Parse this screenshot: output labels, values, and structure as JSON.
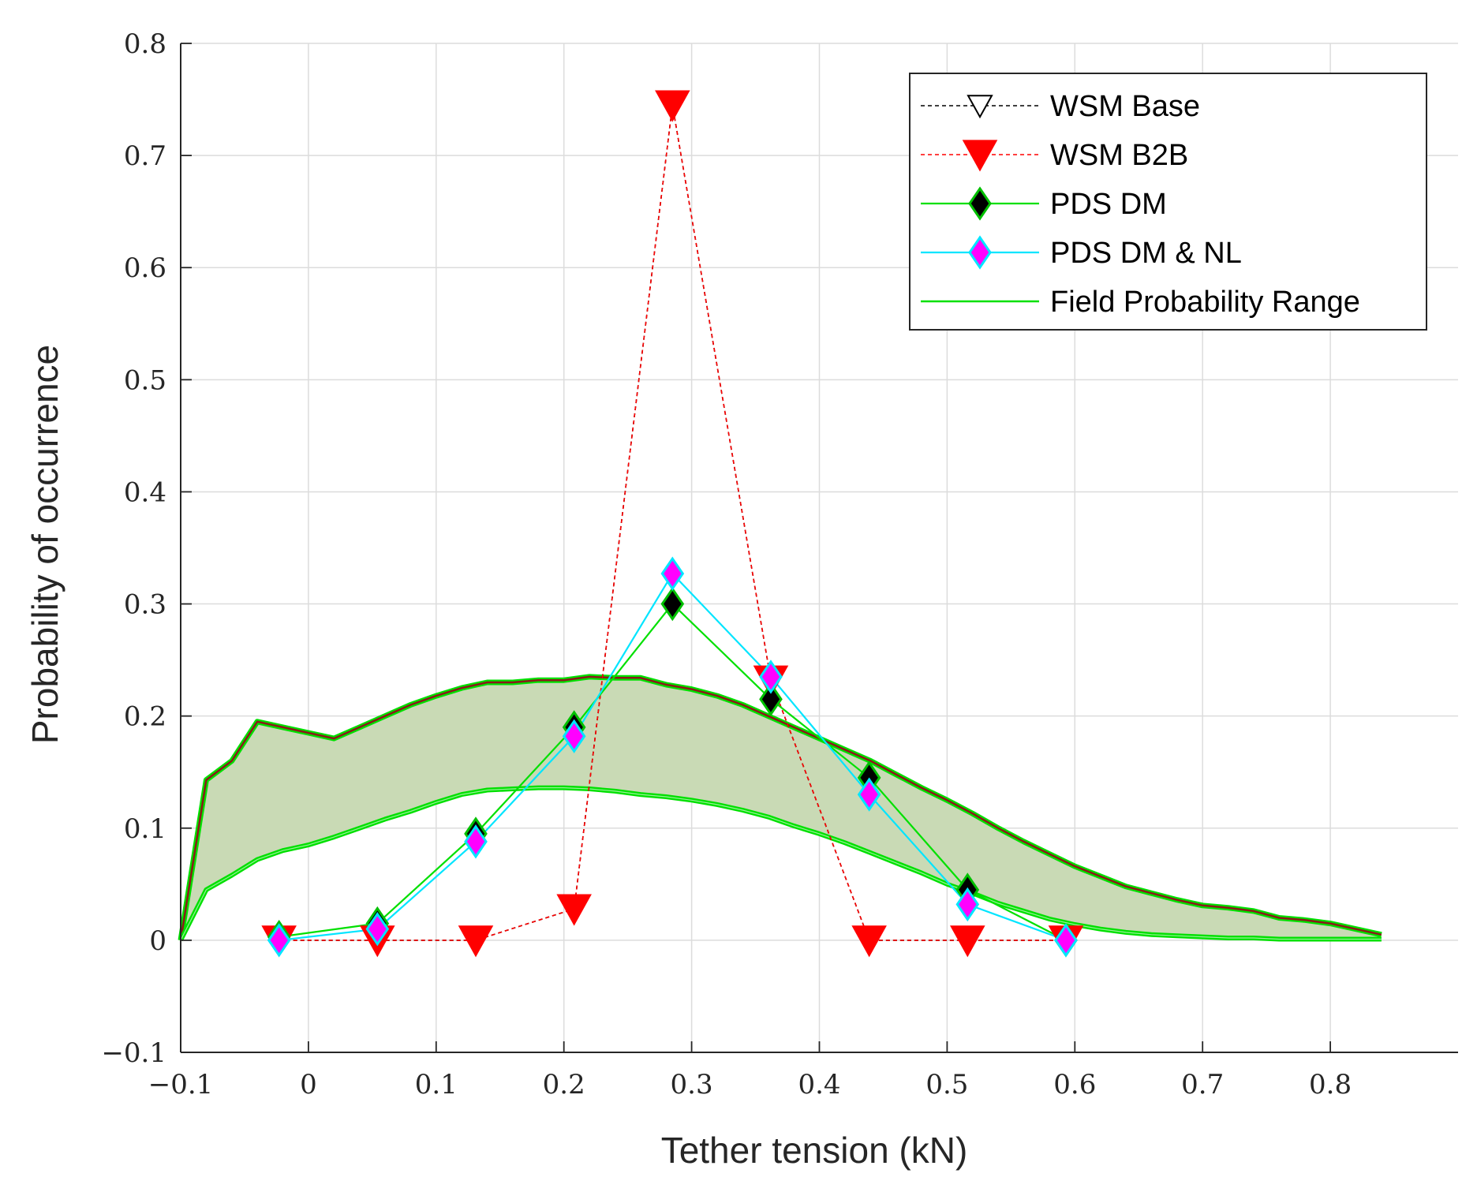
{
  "chart_data": {
    "type": "line",
    "title": "",
    "xlabel": "Tether tension (kN)",
    "ylabel": "Probability of occurrence",
    "xlim": [
      -0.1,
      0.9
    ],
    "ylim": [
      -0.1,
      0.8
    ],
    "xticks": [
      -0.1,
      0,
      0.1,
      0.2,
      0.3,
      0.4,
      0.5,
      0.6,
      0.7,
      0.8
    ],
    "xtick_labels": [
      "−0.1",
      "0",
      "0.1",
      "0.2",
      "0.3",
      "0.4",
      "0.5",
      "0.6",
      "0.7",
      "0.8"
    ],
    "yticks": [
      -0.1,
      0,
      0.1,
      0.2,
      0.3,
      0.4,
      0.5,
      0.6,
      0.7,
      0.8
    ],
    "ytick_labels": [
      "−0.1",
      "0",
      "0.1",
      "0.2",
      "0.3",
      "0.4",
      "0.5",
      "0.6",
      "0.7",
      "0.8"
    ],
    "grid": true,
    "legend_position": "top-right",
    "series": [
      {
        "name": "WSM Base",
        "line_color": "#000000",
        "line_style": "dashed",
        "marker": "triangle-down-open",
        "marker_fill": "#ffffff",
        "marker_edge": "#000000",
        "x": [
          -0.023,
          0.054,
          0.131,
          0.208,
          0.285,
          0.362,
          0.439,
          0.516,
          0.593
        ],
        "y": [
          0.0,
          0.0,
          0.0,
          0.028,
          0.745,
          0.232,
          0.0,
          0.0,
          0.0
        ]
      },
      {
        "name": "WSM B2B",
        "line_color": "#ff0000",
        "line_style": "dashed",
        "marker": "triangle-down-filled",
        "marker_fill": "#ff0000",
        "marker_edge": "#ff0000",
        "x": [
          -0.023,
          0.054,
          0.131,
          0.208,
          0.285,
          0.362,
          0.439,
          0.516,
          0.593
        ],
        "y": [
          0.0,
          0.0,
          0.0,
          0.028,
          0.745,
          0.232,
          0.0,
          0.0,
          0.0
        ]
      },
      {
        "name": "PDS DM",
        "line_color": "#00e000",
        "line_style": "solid",
        "marker": "diamond",
        "marker_fill": "#000000",
        "marker_edge": "#00c000",
        "x": [
          -0.023,
          0.054,
          0.131,
          0.208,
          0.285,
          0.362,
          0.439,
          0.516,
          0.593
        ],
        "y": [
          0.003,
          0.015,
          0.095,
          0.19,
          0.3,
          0.215,
          0.145,
          0.045,
          0.0
        ]
      },
      {
        "name": "PDS DM & NL",
        "line_color": "#00e5ff",
        "line_style": "solid",
        "marker": "diamond",
        "marker_fill": "#ff00ff",
        "marker_edge": "#00e5ff",
        "x": [
          -0.023,
          0.054,
          0.131,
          0.208,
          0.285,
          0.362,
          0.439,
          0.516,
          0.593
        ],
        "y": [
          0.0,
          0.01,
          0.088,
          0.182,
          0.327,
          0.235,
          0.13,
          0.032,
          0.0
        ]
      }
    ],
    "field_range": {
      "name": "Field Probability Range",
      "line_color": "#00e000",
      "upper_edge_color": "#8b1a1a",
      "fill_color": "#c9dab5",
      "x": [
        -0.1,
        -0.08,
        -0.06,
        -0.04,
        -0.02,
        0.0,
        0.02,
        0.04,
        0.06,
        0.08,
        0.1,
        0.12,
        0.14,
        0.16,
        0.18,
        0.2,
        0.22,
        0.24,
        0.26,
        0.28,
        0.3,
        0.32,
        0.34,
        0.36,
        0.38,
        0.4,
        0.42,
        0.44,
        0.46,
        0.48,
        0.5,
        0.52,
        0.54,
        0.56,
        0.58,
        0.6,
        0.62,
        0.64,
        0.66,
        0.68,
        0.7,
        0.72,
        0.74,
        0.76,
        0.78,
        0.8,
        0.82,
        0.84
      ],
      "upper": [
        0.0,
        0.143,
        0.16,
        0.195,
        0.19,
        0.185,
        0.18,
        0.19,
        0.2,
        0.21,
        0.218,
        0.225,
        0.23,
        0.23,
        0.232,
        0.232,
        0.235,
        0.234,
        0.234,
        0.228,
        0.224,
        0.218,
        0.21,
        0.2,
        0.19,
        0.18,
        0.17,
        0.16,
        0.148,
        0.136,
        0.125,
        0.113,
        0.1,
        0.088,
        0.077,
        0.066,
        0.057,
        0.048,
        0.042,
        0.036,
        0.031,
        0.029,
        0.026,
        0.02,
        0.018,
        0.015,
        0.01,
        0.005
      ],
      "lower": [
        0.0,
        0.045,
        0.058,
        0.072,
        0.08,
        0.085,
        0.092,
        0.1,
        0.108,
        0.115,
        0.123,
        0.13,
        0.134,
        0.135,
        0.136,
        0.136,
        0.135,
        0.133,
        0.13,
        0.128,
        0.125,
        0.121,
        0.116,
        0.11,
        0.102,
        0.095,
        0.087,
        0.078,
        0.069,
        0.06,
        0.05,
        0.042,
        0.033,
        0.026,
        0.019,
        0.014,
        0.01,
        0.007,
        0.005,
        0.004,
        0.003,
        0.002,
        0.002,
        0.001,
        0.001,
        0.001,
        0.001,
        0.001
      ]
    }
  }
}
